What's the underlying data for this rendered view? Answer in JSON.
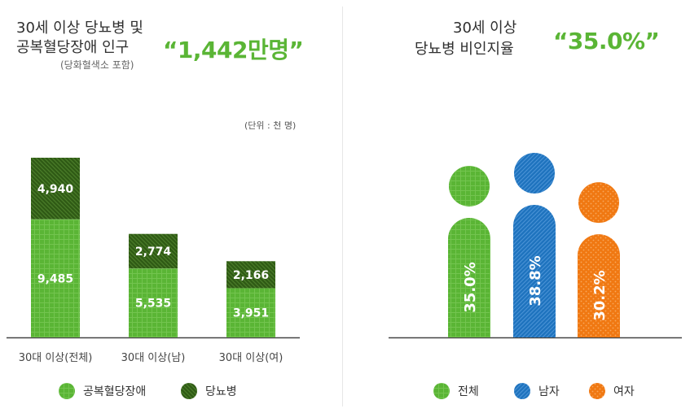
{
  "left": {
    "title_line1": "30세 이상 당뇨병 및",
    "title_line2": "공복혈당장애 인구",
    "subtitle": "(당화혈색소 포함)",
    "highlight": "“1,442만명”",
    "unit": "(단위 : 천 명)"
  },
  "right": {
    "title_line1": "30세 이상",
    "title_line2": "당뇨병 비인지율",
    "highlight": "“35.0%”"
  },
  "colors": {
    "light_green": "#5ab535",
    "dark_green": "#2f5a15",
    "blue": "#1e73be",
    "orange": "#f07812"
  },
  "chart_data": [
    {
      "type": "bar",
      "stacked": true,
      "categories": [
        "30대 이상(전체)",
        "30대 이상(남)",
        "30대 이상(여)"
      ],
      "series": [
        {
          "name": "공복혈당장애",
          "values": [
            9485,
            5535,
            3951
          ],
          "labels": [
            "9,485",
            "5,535",
            "3,951"
          ],
          "color": "#5ab535"
        },
        {
          "name": "당뇨병",
          "values": [
            4940,
            2774,
            2166
          ],
          "labels": [
            "4,940",
            "2,774",
            "2,166"
          ],
          "color": "#2f5a15"
        }
      ],
      "unit": "(단위 : 천 명)",
      "legend": [
        "공복혈당장애",
        "당뇨병"
      ]
    },
    {
      "type": "bar",
      "categories": [
        "전체",
        "남자",
        "여자"
      ],
      "values": [
        35.0,
        38.8,
        30.2
      ],
      "labels": [
        "35.0%",
        "38.8%",
        "30.2%"
      ],
      "colors": [
        "#5ab535",
        "#1e73be",
        "#f07812"
      ],
      "ylabel": "%",
      "legend": [
        "전체",
        "남자",
        "여자"
      ]
    }
  ]
}
